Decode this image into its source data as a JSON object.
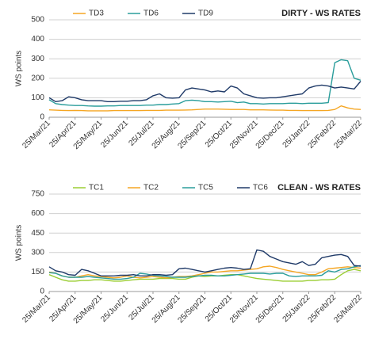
{
  "chart_data": [
    {
      "type": "line",
      "title": "DIRTY - WS RATES",
      "y_label": "WS points",
      "categories": [
        "25/Mar/21",
        null,
        null,
        null,
        "25/Apr/21",
        null,
        null,
        null,
        "25/May/21",
        null,
        null,
        null,
        "25/Jun/21",
        null,
        null,
        null,
        "25/Jul/21",
        null,
        null,
        null,
        "25/Aug/21",
        null,
        null,
        null,
        "25/Sep/21",
        null,
        null,
        null,
        "25/Oct/21",
        null,
        null,
        null,
        "25/Nov/21",
        null,
        null,
        null,
        "25/Dec/21",
        null,
        null,
        null,
        "25/Jan/22",
        null,
        null,
        null,
        "25/Feb/22",
        null,
        null,
        null,
        "25/Mar/22"
      ],
      "series": [
        {
          "name": "TD3",
          "color": "#f5a623",
          "values": [
            38,
            36,
            35,
            34,
            35,
            34,
            33,
            33,
            33,
            33,
            34,
            34,
            34,
            34,
            34,
            35,
            35,
            35,
            36,
            36,
            36,
            37,
            38,
            40,
            42,
            42,
            42,
            41,
            40,
            40,
            40,
            38,
            38,
            38,
            37,
            36,
            36,
            35,
            35,
            34,
            34,
            34,
            34,
            35,
            40,
            58,
            48,
            42,
            40
          ]
        },
        {
          "name": "TD6",
          "color": "#2a9d9b",
          "values": [
            90,
            70,
            65,
            62,
            60,
            60,
            58,
            57,
            57,
            58,
            58,
            60,
            60,
            60,
            60,
            62,
            62,
            65,
            65,
            68,
            70,
            85,
            88,
            85,
            80,
            80,
            78,
            80,
            82,
            75,
            78,
            70,
            70,
            68,
            70,
            70,
            70,
            72,
            72,
            70,
            72,
            72,
            72,
            75,
            280,
            295,
            290,
            200,
            190
          ]
        },
        {
          "name": "TD9",
          "color": "#1f3a68",
          "values": [
            100,
            80,
            85,
            105,
            100,
            90,
            85,
            85,
            85,
            80,
            80,
            82,
            82,
            85,
            85,
            90,
            110,
            120,
            100,
            98,
            100,
            140,
            150,
            145,
            140,
            130,
            135,
            130,
            160,
            150,
            120,
            110,
            100,
            98,
            100,
            100,
            105,
            110,
            115,
            120,
            150,
            160,
            165,
            160,
            150,
            155,
            150,
            145,
            185
          ]
        }
      ],
      "ylim": [
        0,
        500
      ],
      "yticks": [
        0,
        100,
        200,
        300,
        400,
        500
      ],
      "grid": true
    },
    {
      "type": "line",
      "title": "CLEAN - WS RATES",
      "y_label": "WS points",
      "categories": [
        "25/Mar/21",
        null,
        null,
        null,
        "25/Apr/21",
        null,
        null,
        null,
        "25/May/21",
        null,
        null,
        null,
        "25/Jun/21",
        null,
        null,
        null,
        "25/Jul/21",
        null,
        null,
        null,
        "25/Aug/21",
        null,
        null,
        null,
        "25/Sep/21",
        null,
        null,
        null,
        "25/Oct/21",
        null,
        null,
        null,
        "25/Nov/21",
        null,
        null,
        null,
        "25/Dec/21",
        null,
        null,
        null,
        "25/Jan/22",
        null,
        null,
        null,
        "25/Feb/22",
        null,
        null,
        null,
        "25/Mar/22"
      ],
      "series": [
        {
          "name": "TC1",
          "color": "#9acd32",
          "values": [
            130,
            110,
            90,
            80,
            80,
            85,
            85,
            90,
            90,
            85,
            80,
            80,
            85,
            90,
            95,
            95,
            95,
            100,
            100,
            100,
            95,
            95,
            110,
            120,
            115,
            120,
            120,
            125,
            130,
            130,
            120,
            110,
            100,
            95,
            90,
            85,
            80,
            80,
            80,
            80,
            85,
            85,
            90,
            90,
            95,
            130,
            160,
            170,
            160
          ]
        },
        {
          "name": "TC2",
          "color": "#f5a623",
          "values": [
            150,
            140,
            120,
            110,
            110,
            120,
            130,
            120,
            115,
            110,
            105,
            110,
            120,
            110,
            105,
            110,
            115,
            110,
            105,
            110,
            115,
            115,
            120,
            130,
            140,
            150,
            150,
            155,
            160,
            160,
            165,
            170,
            175,
            190,
            195,
            185,
            170,
            160,
            150,
            140,
            130,
            130,
            150,
            175,
            180,
            185,
            190,
            185,
            180
          ]
        },
        {
          "name": "TC5",
          "color": "#2a9d9b",
          "values": [
            145,
            140,
            120,
            110,
            110,
            110,
            115,
            110,
            105,
            100,
            95,
            95,
            100,
            110,
            140,
            135,
            125,
            120,
            115,
            110,
            110,
            110,
            115,
            120,
            125,
            125,
            120,
            120,
            125,
            130,
            135,
            140,
            140,
            140,
            135,
            140,
            140,
            120,
            115,
            120,
            120,
            120,
            125,
            160,
            150,
            170,
            175,
            190,
            200
          ]
        },
        {
          "name": "TC6",
          "color": "#1f3a68",
          "values": [
            190,
            160,
            150,
            130,
            125,
            170,
            160,
            140,
            120,
            120,
            120,
            125,
            125,
            130,
            120,
            120,
            130,
            130,
            125,
            130,
            175,
            180,
            170,
            160,
            150,
            160,
            170,
            180,
            185,
            180,
            170,
            175,
            320,
            310,
            270,
            250,
            230,
            220,
            210,
            230,
            200,
            210,
            260,
            270,
            280,
            285,
            270,
            200,
            195
          ]
        }
      ],
      "ylim": [
        0,
        750
      ],
      "yticks": [
        0,
        150,
        300,
        450,
        600,
        750
      ],
      "grid": true
    }
  ]
}
